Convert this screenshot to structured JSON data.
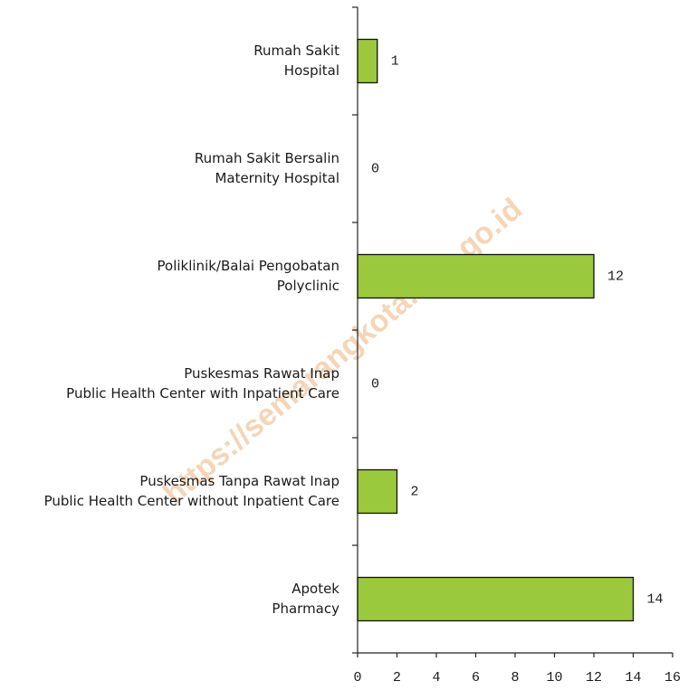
{
  "chart_data": {
    "type": "barh",
    "categories": [
      [
        "Rumah Sakit",
        "Hospital"
      ],
      [
        "Rumah Sakit Bersalin",
        "Maternity Hospital"
      ],
      [
        "Poliklinik/Balai Pengobatan",
        "Polyclinic"
      ],
      [
        "Puskesmas Rawat Inap",
        "Public Health Center with Inpatient Care"
      ],
      [
        "Puskesmas Tanpa Rawat Inap",
        "Public Health Center without Inpatient Care"
      ],
      [
        "Apotek",
        "Pharmacy"
      ]
    ],
    "values": [
      1,
      0,
      12,
      0,
      2,
      14
    ],
    "color": "#9bc93e",
    "xlim": [
      0,
      16
    ],
    "xticks": [
      0,
      2,
      4,
      6,
      8,
      10,
      12,
      14,
      16
    ],
    "watermark": "https://semarangkota.bps.go.id"
  }
}
